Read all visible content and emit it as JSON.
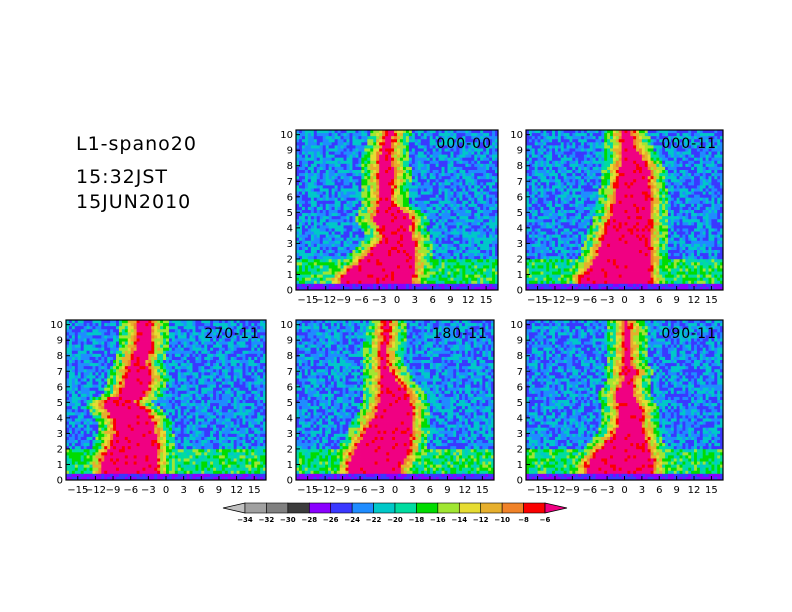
{
  "header": {
    "title": "L1-spano20",
    "time": "15:32JST",
    "date": "15JUN2010"
  },
  "colorbar": {
    "levels": [
      "-34",
      "-32",
      "-30",
      "-28",
      "-26",
      "-24",
      "-22",
      "-20",
      "-18",
      "-16",
      "-14",
      "-12",
      "-10",
      "-8",
      "-6"
    ],
    "colors": [
      "#c0c0c0",
      "#a0a0a0",
      "#808080",
      "#3c3c3c",
      "#8a00ff",
      "#3a38ff",
      "#1f8cff",
      "#00c8c8",
      "#00dca0",
      "#00dc00",
      "#a0e632",
      "#e6dc32",
      "#e6af2d",
      "#f08228",
      "#fa0000",
      "#f00082"
    ]
  },
  "chart_data": [
    {
      "type": "heatmap",
      "title": "000-00",
      "x_ticks": [
        "-15",
        "-12",
        "-9",
        "-6",
        "-3",
        "0",
        "3",
        "6",
        "9",
        "12",
        "15"
      ],
      "y_ticks": [
        "0",
        "1",
        "2",
        "3",
        "4",
        "5",
        "6",
        "7",
        "8",
        "9",
        "10"
      ],
      "xlim": [
        -17,
        17
      ],
      "ylim": [
        0,
        10.3
      ],
      "core": [
        [
          0.7,
          -9.5,
          2.5
        ],
        [
          1.3,
          -8.0,
          3.0
        ],
        [
          2.0,
          -5.5,
          3.0
        ],
        [
          2.8,
          -3.5,
          3.0
        ],
        [
          3.5,
          -2.0,
          2.5
        ],
        [
          4.0,
          -2.8,
          2.0
        ],
        [
          4.5,
          -4.0,
          2.5
        ],
        [
          5.0,
          -3.5,
          1.5
        ],
        [
          5.5,
          -3.0,
          -1.0
        ],
        [
          6.5,
          -3.0,
          -1.0
        ],
        [
          7.5,
          -3.0,
          -0.5
        ],
        [
          8.5,
          -3.0,
          -1.0
        ],
        [
          9.5,
          -2.0,
          -1.0
        ],
        [
          10.3,
          -1.5,
          -0.5
        ]
      ]
    },
    {
      "type": "heatmap",
      "title": "000-11",
      "x_ticks": [
        "-15",
        "-12",
        "-9",
        "-6",
        "-3",
        "0",
        "3",
        "6",
        "9",
        "12",
        "15"
      ],
      "y_ticks": [
        "0",
        "1",
        "2",
        "3",
        "4",
        "5",
        "6",
        "7",
        "8",
        "9",
        "10"
      ],
      "xlim": [
        -17,
        17
      ],
      "ylim": [
        0,
        10.3
      ],
      "core": [
        [
          0.7,
          -7.5,
          4.5
        ],
        [
          1.3,
          -6.5,
          4.5
        ],
        [
          2.0,
          -5.0,
          4.5
        ],
        [
          3.0,
          -4.0,
          4.5
        ],
        [
          4.0,
          -3.0,
          4.5
        ],
        [
          5.0,
          -2.0,
          4.5
        ],
        [
          6.0,
          -1.5,
          4.5
        ],
        [
          7.0,
          -1.0,
          4.0
        ],
        [
          7.5,
          -1.0,
          4.5
        ],
        [
          8.5,
          -0.5,
          3.0
        ],
        [
          9.5,
          -0.5,
          1.5
        ],
        [
          10.3,
          -0.5,
          1.0
        ]
      ]
    },
    {
      "type": "heatmap",
      "title": "270-11",
      "x_ticks": [
        "-15",
        "-12",
        "-9",
        "-6",
        "-3",
        "0",
        "3",
        "6",
        "9",
        "12",
        "15"
      ],
      "y_ticks": [
        "0",
        "1",
        "2",
        "3",
        "4",
        "5",
        "6",
        "7",
        "8",
        "9",
        "10"
      ],
      "xlim": [
        -17,
        17
      ],
      "ylim": [
        0,
        10.3
      ],
      "core": [
        [
          0.7,
          -11.0,
          -1.5
        ],
        [
          1.5,
          -10.5,
          -1.5
        ],
        [
          2.5,
          -9.0,
          -1.5
        ],
        [
          3.5,
          -8.5,
          -2.0
        ],
        [
          4.5,
          -10.0,
          -3.5
        ],
        [
          5.0,
          -11.0,
          -5.5
        ],
        [
          5.5,
          -7.5,
          -3.5
        ],
        [
          6.5,
          -7.0,
          -2.5
        ],
        [
          7.5,
          -6.0,
          -3.5
        ],
        [
          8.5,
          -5.0,
          -2.5
        ],
        [
          9.5,
          -5.0,
          -2.5
        ]
      ]
    },
    {
      "type": "heatmap",
      "title": "180-11",
      "x_ticks": [
        "-15",
        "-12",
        "-9",
        "-6",
        "-3",
        "0",
        "3",
        "6",
        "9",
        "12",
        "15"
      ],
      "y_ticks": [
        "0",
        "1",
        "2",
        "3",
        "4",
        "5",
        "6",
        "7",
        "8",
        "9",
        "10"
      ],
      "xlim": [
        -17,
        17
      ],
      "ylim": [
        0,
        10.3
      ],
      "core": [
        [
          0.7,
          -8.0,
          1.0
        ],
        [
          1.5,
          -7.5,
          2.0
        ],
        [
          2.5,
          -6.0,
          2.5
        ],
        [
          3.5,
          -4.5,
          3.0
        ],
        [
          4.5,
          -3.0,
          3.0
        ],
        [
          5.5,
          -2.5,
          2.5
        ],
        [
          6.5,
          -2.5,
          0.0
        ],
        [
          7.5,
          -2.5,
          -1.5
        ],
        [
          8.5,
          -2.5,
          -1.5
        ],
        [
          9.5,
          -2.0,
          -1.0
        ],
        [
          10.3,
          -1.5,
          -1.0
        ]
      ]
    },
    {
      "type": "heatmap",
      "title": "090-11",
      "x_ticks": [
        "-15",
        "-12",
        "-9",
        "-6",
        "-3",
        "0",
        "3",
        "6",
        "9",
        "12",
        "15"
      ],
      "y_ticks": [
        "0",
        "1",
        "2",
        "3",
        "4",
        "5",
        "6",
        "7",
        "8",
        "9",
        "10"
      ],
      "xlim": [
        -17,
        17
      ],
      "ylim": [
        0,
        10.3
      ],
      "core": [
        [
          0.7,
          -6.5,
          5.0
        ],
        [
          1.3,
          -6.0,
          5.0
        ],
        [
          2.0,
          -4.0,
          4.0
        ],
        [
          2.8,
          -2.0,
          3.5
        ],
        [
          3.5,
          -1.0,
          3.0
        ],
        [
          4.5,
          -1.0,
          3.0
        ],
        [
          5.5,
          -1.5,
          1.5
        ],
        [
          6.5,
          0.0,
          1.5
        ],
        [
          7.0,
          -0.5,
          2.0
        ],
        [
          7.5,
          0.0,
          1.0
        ],
        [
          8.5,
          0.0,
          1.0
        ],
        [
          9.5,
          0.0,
          1.0
        ],
        [
          10.3,
          0.0,
          0.5
        ]
      ]
    }
  ]
}
